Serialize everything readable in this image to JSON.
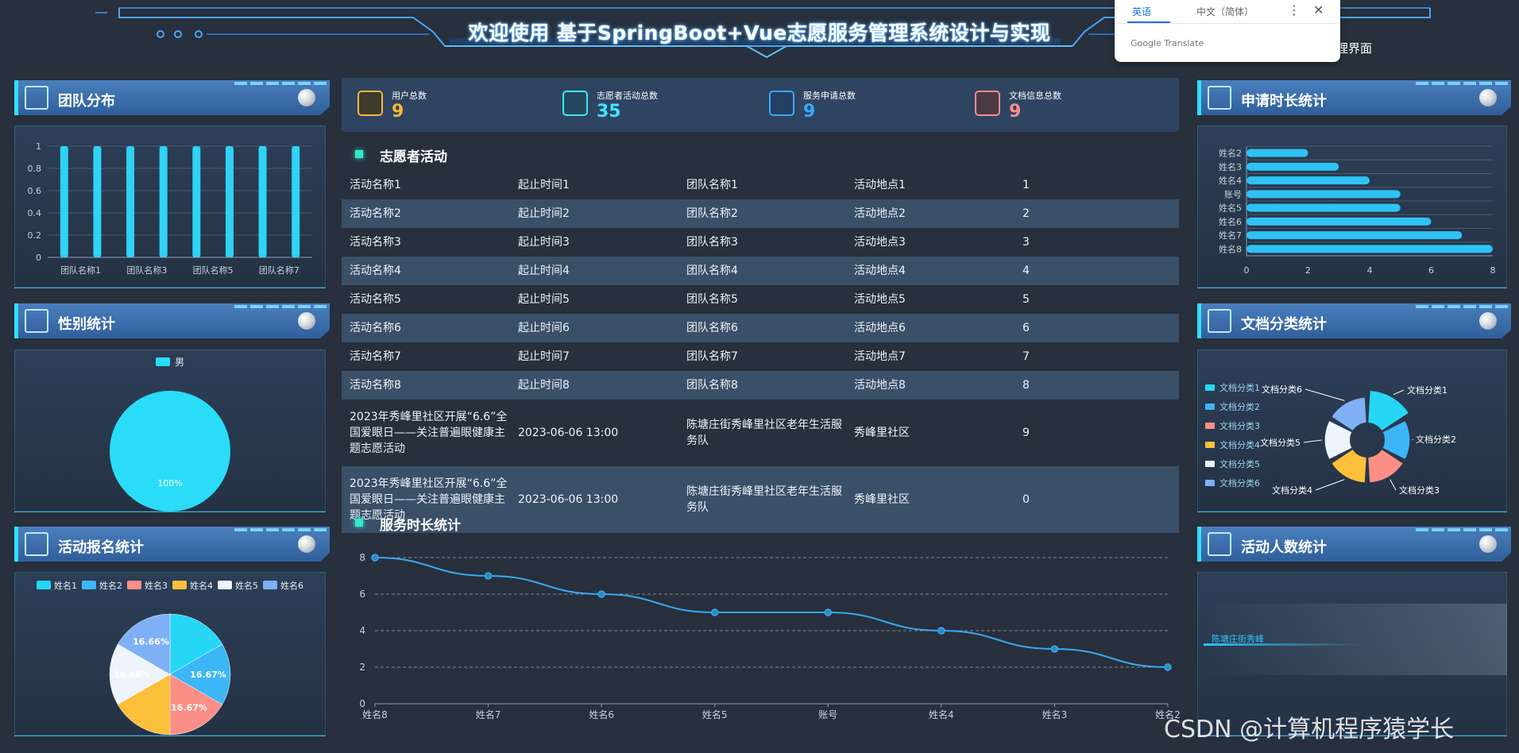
{
  "header": {
    "title": "欢迎使用 基于SpringBoot+Vue志愿服务管理系统设计与实现",
    "admin_link": "理界面"
  },
  "translate_popup": {
    "tab_en": "英语",
    "tab_zh": "中文（简体）",
    "more": "⋮",
    "close": "✕",
    "brand": "Google Translate"
  },
  "panels": {
    "team_distribution": "团队分布",
    "gender_stats": "性别统计",
    "signup_stats": "活动报名统计",
    "duration_stats": "申请时长统计",
    "doc_category_stats": "文档分类统计",
    "participant_stats": "活动人数统计"
  },
  "stats": [
    {
      "label": "用户总数",
      "value": "9",
      "color": "#f5b73a"
    },
    {
      "label": "志愿者活动总数",
      "value": "35",
      "color": "#3ee6ff"
    },
    {
      "label": "服务申请总数",
      "value": "9",
      "color": "#3aa8ff"
    },
    {
      "label": "文档信息总数",
      "value": "9",
      "color": "#ff8c8c"
    }
  ],
  "activities": {
    "title": "志愿者活动",
    "rows": [
      [
        "活动名称1",
        "起止时间1",
        "团队名称1",
        "活动地点1",
        "1"
      ],
      [
        "活动名称2",
        "起止时间2",
        "团队名称2",
        "活动地点2",
        "2"
      ],
      [
        "活动名称3",
        "起止时间3",
        "团队名称3",
        "活动地点3",
        "3"
      ],
      [
        "活动名称4",
        "起止时间4",
        "团队名称4",
        "活动地点4",
        "4"
      ],
      [
        "活动名称5",
        "起止时间5",
        "团队名称5",
        "活动地点5",
        "5"
      ],
      [
        "活动名称6",
        "起止时间6",
        "团队名称6",
        "活动地点6",
        "6"
      ],
      [
        "活动名称7",
        "起止时间7",
        "团队名称7",
        "活动地点7",
        "7"
      ],
      [
        "活动名称8",
        "起止时间8",
        "团队名称8",
        "活动地点8",
        "8"
      ],
      [
        "2023年秀峰里社区开展“6.6”全国爱眼日——关注普遍眼健康主题志愿活动",
        "2023-06-06 13:00",
        "陈塘庄街秀峰里社区老年生活服务队",
        "秀峰里社区",
        "9"
      ],
      [
        "2023年秀峰里社区开展“6.6”全国爱眼日——关注普遍眼健康主题志愿活动",
        "2023-06-06 13:00",
        "陈塘庄街秀峰里社区老年生活服务队",
        "秀峰里社区",
        "0"
      ]
    ]
  },
  "service_duration": {
    "title": "服务时长统计"
  },
  "participant_label": "陈塘庄街秀峰",
  "watermark": "CSDN @计算机程序猿学长",
  "chart_data": [
    {
      "id": "team_distribution",
      "type": "bar",
      "categories": [
        "团队名称1",
        "团队名称2",
        "团队名称3",
        "团队名称4",
        "团队名称5",
        "团队名称6",
        "团队名称7",
        "团队名称8"
      ],
      "tick_labels": [
        "团队名称1",
        "团队名称3",
        "团队名称5",
        "团队名称7"
      ],
      "values": [
        1,
        1,
        1,
        1,
        1,
        1,
        1,
        1
      ],
      "ylim": [
        0,
        1
      ],
      "yticks": [
        "0",
        "0.2",
        "0.4",
        "0.6",
        "0.8",
        "1"
      ],
      "color": "#2fd3f5"
    },
    {
      "id": "gender_stats",
      "type": "pie",
      "legend": [
        "男"
      ],
      "slices": [
        {
          "name": "男",
          "value": 100,
          "label": "100%"
        }
      ],
      "colors": [
        "#2adcf7"
      ]
    },
    {
      "id": "signup_stats",
      "type": "pie",
      "legend": [
        "姓名1",
        "姓名2",
        "姓名3",
        "姓名4",
        "姓名5",
        "姓名6"
      ],
      "slices": [
        {
          "name": "姓名1",
          "value": 16.67,
          "label": ""
        },
        {
          "name": "姓名2",
          "value": 16.67,
          "label": "16.67%"
        },
        {
          "name": "姓名3",
          "value": 16.67,
          "label": "16.67%"
        },
        {
          "name": "姓名4",
          "value": 16.67,
          "label": ""
        },
        {
          "name": "姓名5",
          "value": 16.66,
          "label": "16.66%"
        },
        {
          "name": "姓名6",
          "value": 16.66,
          "label": "16.66%"
        }
      ],
      "colors": [
        "#26d7f5",
        "#3cb6f7",
        "#fb8f86",
        "#fbbf3a",
        "#eef4fb",
        "#7fb0f5"
      ]
    },
    {
      "id": "duration_stats",
      "type": "bar",
      "orientation": "horizontal",
      "categories": [
        "姓名2",
        "姓名3",
        "姓名4",
        "账号",
        "姓名5",
        "姓名6",
        "姓名7",
        "姓名8"
      ],
      "values": [
        2,
        3,
        4,
        5,
        5,
        6,
        7,
        8
      ],
      "xlim": [
        0,
        8
      ],
      "xticks": [
        "0",
        "2",
        "4",
        "6",
        "8"
      ],
      "color": "#2fc2f5"
    },
    {
      "id": "doc_category_stats",
      "type": "pie",
      "variant": "rose-donut",
      "legend": [
        "文档分类1",
        "文档分类2",
        "文档分类3",
        "文档分类4",
        "文档分类5",
        "文档分类6"
      ],
      "slices": [
        {
          "name": "文档分类1",
          "value": 6
        },
        {
          "name": "文档分类2",
          "value": 4
        },
        {
          "name": "文档分类3",
          "value": 4
        },
        {
          "name": "文档分类4",
          "value": 4
        },
        {
          "name": "文档分类5",
          "value": 4
        },
        {
          "name": "文档分类6",
          "value": 4
        }
      ],
      "colors": [
        "#26d7f5",
        "#3cb6f7",
        "#fb8f86",
        "#fbbf3a",
        "#eef4fb",
        "#7fb0f5"
      ]
    },
    {
      "id": "service_duration",
      "type": "line",
      "x": [
        "姓名8",
        "姓名7",
        "姓名6",
        "姓名5",
        "账号",
        "姓名4",
        "姓名3",
        "姓名2"
      ],
      "y": [
        8,
        7,
        6,
        5,
        5,
        4,
        3,
        2
      ],
      "ylim": [
        0,
        8
      ],
      "yticks": [
        "0",
        "2",
        "4",
        "6",
        "8"
      ],
      "grid": true,
      "color": "#3aa8f5"
    }
  ]
}
